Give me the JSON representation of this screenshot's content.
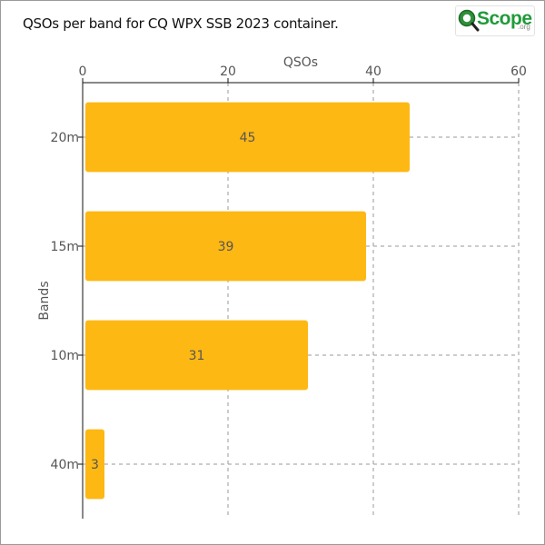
{
  "title": "QSOs per band for CQ WPX SSB 2023 container.",
  "logo": {
    "text": "Scope",
    "suffix": ".org",
    "icon": "magnifier-q-icon"
  },
  "colors": {
    "bar": "#fdb813",
    "grid": "#9a9a9a",
    "axis": "#111111",
    "text": "#555555"
  },
  "chart_data": {
    "type": "bar",
    "orientation": "horizontal",
    "categories": [
      "20m",
      "15m",
      "10m",
      "40m"
    ],
    "values": [
      45,
      39,
      31,
      3
    ],
    "data_labels": [
      "45",
      "39",
      "31",
      "3"
    ],
    "xlabel": "QSOs",
    "ylabel": "Bands",
    "xlim": [
      0,
      60
    ],
    "xticks": [
      0,
      20,
      40,
      60
    ],
    "x_axis_position": "top",
    "grid": true,
    "legend": "none"
  }
}
